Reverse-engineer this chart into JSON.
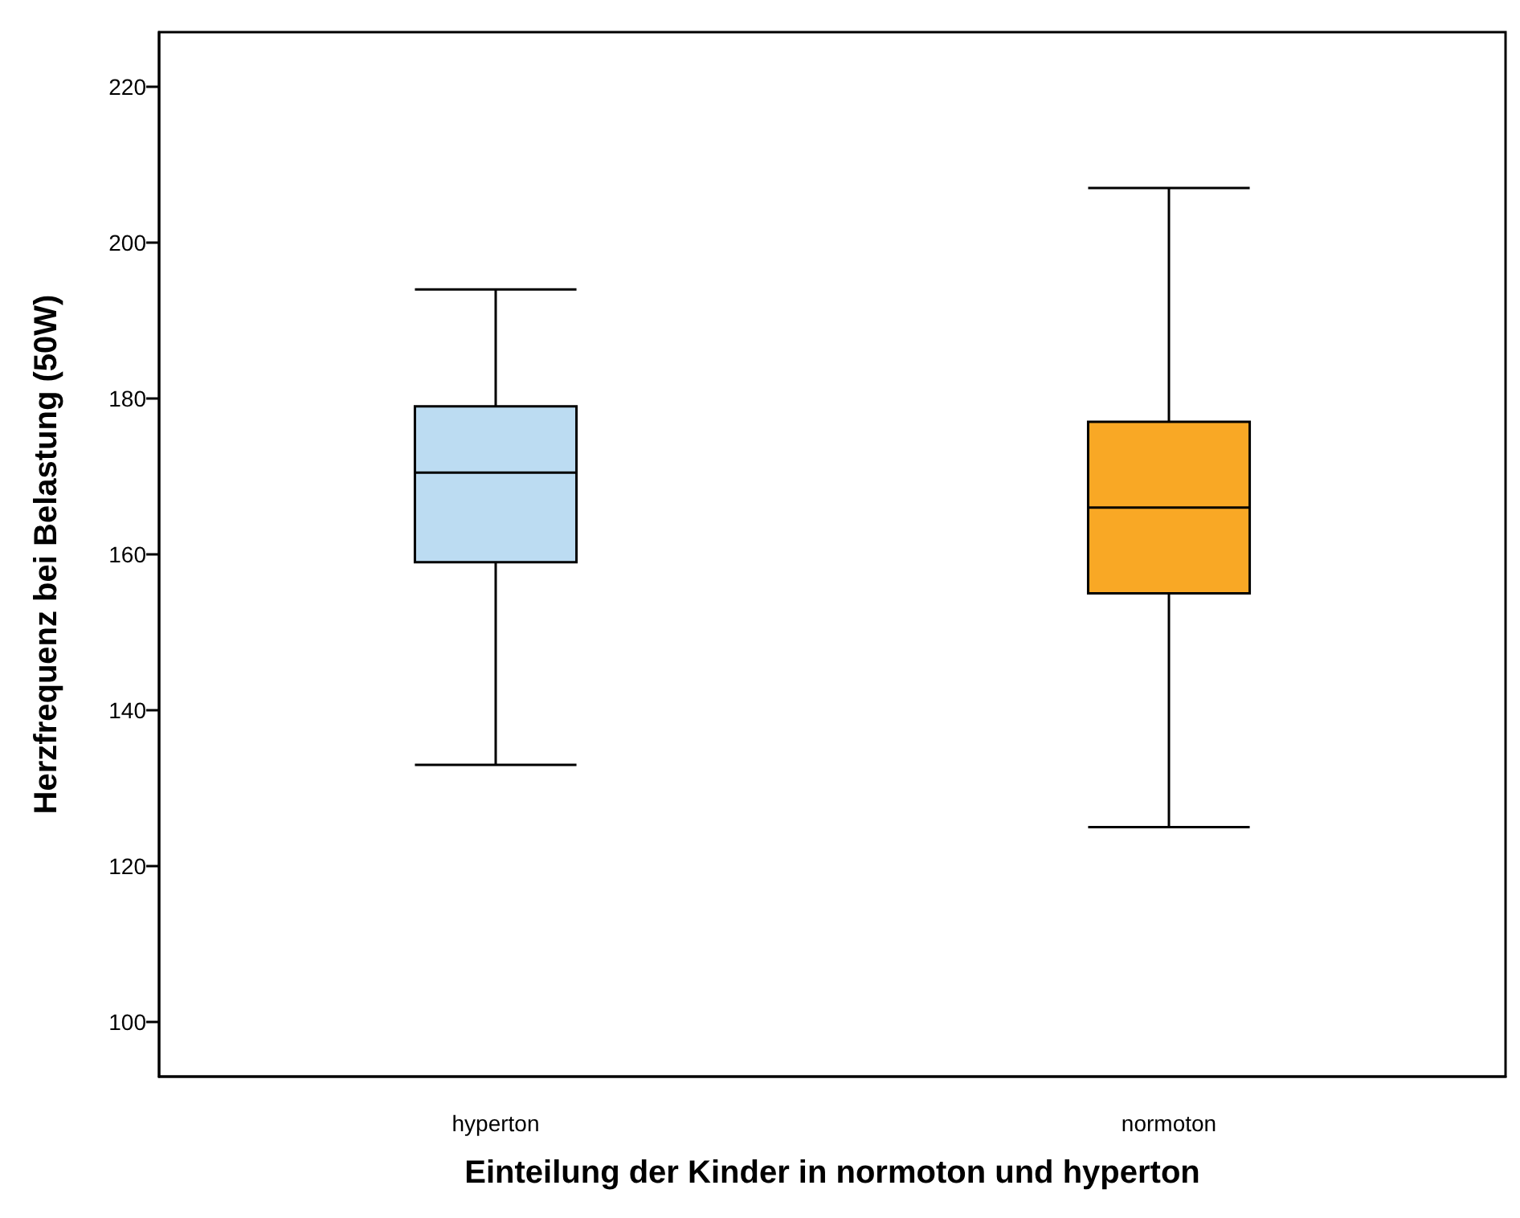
{
  "chart_data": {
    "type": "box",
    "xlabel": "Einteilung der Kinder in normoton und hyperton",
    "ylabel": "Herzfrequenz bei Belastung (50W)",
    "categories": [
      "hyperton",
      "normoton"
    ],
    "boxes": [
      {
        "low": 133,
        "q1": 159,
        "median": 170.5,
        "q3": 179,
        "high": 194
      },
      {
        "low": 125,
        "q1": 155,
        "median": 166,
        "q3": 177,
        "high": 207
      }
    ],
    "colors": [
      "#bcdcf2",
      "#f9a825"
    ],
    "ylim": [
      93,
      227
    ],
    "yticks": [
      100,
      120,
      140,
      160,
      180,
      200,
      220
    ]
  }
}
